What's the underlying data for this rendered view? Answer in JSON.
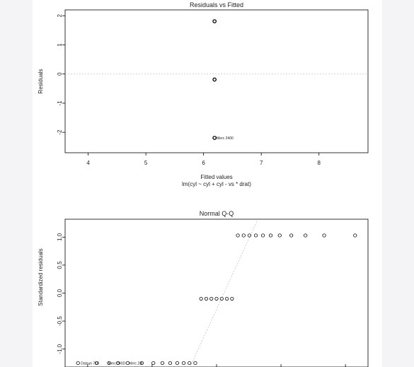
{
  "chart_data": [
    {
      "type": "scatter",
      "title": "Residuals vs Fitted",
      "xlabel": "Fitted values",
      "subtitle": "lm(cyl ~ cyl + cyl - vs * drat)",
      "ylabel": "Residuals",
      "xlim": [
        3.6,
        8.85
      ],
      "ylim": [
        -2.7,
        2.2
      ],
      "xticks": [
        4,
        5,
        6,
        7,
        8
      ],
      "yticks": [
        -2,
        -1,
        0,
        1,
        2
      ],
      "reference_line_y": 0,
      "points": [
        {
          "x": 6.19,
          "y": 1.81
        },
        {
          "x": 6.19,
          "y": -0.19
        },
        {
          "x": 6.19,
          "y": -2.19
        }
      ],
      "annotations": [
        {
          "text": "Merc 2400",
          "x": 6.19,
          "y": -2.19
        }
      ]
    },
    {
      "type": "scatter",
      "title": "Normal Q-Q",
      "xlabel": "",
      "ylabel": "Standardized residuals",
      "xlim": [
        -2.35,
        2.35
      ],
      "ylim": [
        -1.32,
        1.32
      ],
      "yticks": [
        -1.0,
        -0.5,
        0.0,
        0.5,
        1.0
      ],
      "reference_line": [
        [
          -0.41,
          -1.32
        ],
        [
          0.64,
          1.32
        ]
      ],
      "points": [
        {
          "x": -2.15,
          "y": -1.25
        },
        {
          "x": -1.86,
          "y": -1.25
        },
        {
          "x": -1.67,
          "y": -1.25
        },
        {
          "x": -1.53,
          "y": -1.25
        },
        {
          "x": -1.38,
          "y": -1.25
        },
        {
          "x": -1.16,
          "y": -1.25
        },
        {
          "x": -0.98,
          "y": -1.25
        },
        {
          "x": -0.84,
          "y": -1.25
        },
        {
          "x": -0.72,
          "y": -1.25
        },
        {
          "x": -0.61,
          "y": -1.25
        },
        {
          "x": -0.51,
          "y": -1.25
        },
        {
          "x": -0.42,
          "y": -1.25
        },
        {
          "x": -0.33,
          "y": -1.25
        },
        {
          "x": -0.24,
          "y": -0.1
        },
        {
          "x": -0.16,
          "y": -0.1
        },
        {
          "x": -0.08,
          "y": -0.1
        },
        {
          "x": 0.0,
          "y": -0.1
        },
        {
          "x": 0.08,
          "y": -0.1
        },
        {
          "x": 0.16,
          "y": -0.1
        },
        {
          "x": 0.24,
          "y": -0.1
        },
        {
          "x": 0.33,
          "y": 1.03
        },
        {
          "x": 0.42,
          "y": 1.03
        },
        {
          "x": 0.51,
          "y": 1.03
        },
        {
          "x": 0.61,
          "y": 1.03
        },
        {
          "x": 0.72,
          "y": 1.03
        },
        {
          "x": 0.84,
          "y": 1.03
        },
        {
          "x": 0.98,
          "y": 1.03
        },
        {
          "x": 1.16,
          "y": 1.03
        },
        {
          "x": 1.38,
          "y": 1.03
        },
        {
          "x": 1.67,
          "y": 1.03
        },
        {
          "x": 2.15,
          "y": 1.03
        }
      ],
      "annotations": [
        {
          "text": "Datsun 710",
          "x": -2.15,
          "y": -1.25
        },
        {
          "text": "Merc 240D",
          "x": -1.86,
          "y": -1.25
        },
        {
          "text": "Merc 230",
          "x": -1.67,
          "y": -1.25
        }
      ]
    }
  ],
  "colors": {
    "point": "#000000",
    "reference_line": "#bbbbbb",
    "sidebar": "#f4f4f6"
  }
}
